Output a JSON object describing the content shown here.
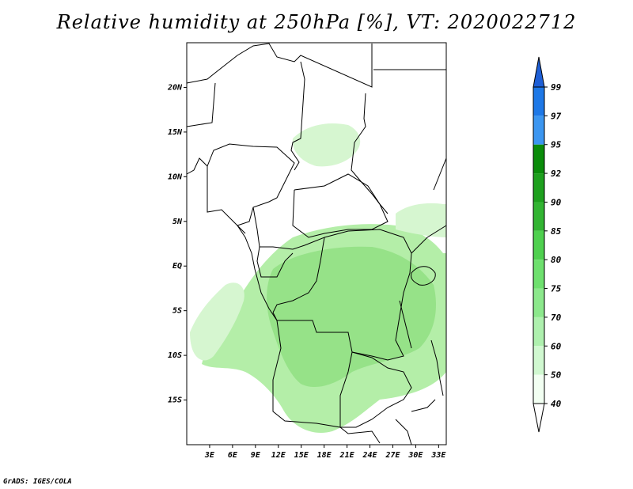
{
  "title": "Relative humidity at 250hPa [%], VT: 2020022712",
  "credit": "GrADS: IGES/COLA",
  "map": {
    "lon_range": [
      0,
      34
    ],
    "lat_range": [
      -20,
      25
    ],
    "lon_ticks": [
      "3E",
      "6E",
      "9E",
      "12E",
      "15E",
      "18E",
      "21E",
      "24E",
      "27E",
      "30E",
      "33E"
    ],
    "lat_ticks": [
      "20N",
      "15N",
      "10N",
      "5N",
      "EQ",
      "5S",
      "10S",
      "15S"
    ]
  },
  "colorbar": {
    "levels": [
      "99",
      "97",
      "95",
      "92",
      "90",
      "85",
      "80",
      "75",
      "70",
      "60",
      "50",
      "40"
    ],
    "colors": [
      "#1e5fd6",
      "#1e78e6",
      "#3c96f0",
      "#0a8c0a",
      "#1ea01e",
      "#32b432",
      "#4fd04f",
      "#6ee06e",
      "#8ce88c",
      "#aef0ae",
      "#d0f8d0",
      "#f2fff2"
    ]
  },
  "fill_colors": {
    "light": "#d6f6d0",
    "medium": "#b4eea8",
    "strong": "#96e288"
  }
}
